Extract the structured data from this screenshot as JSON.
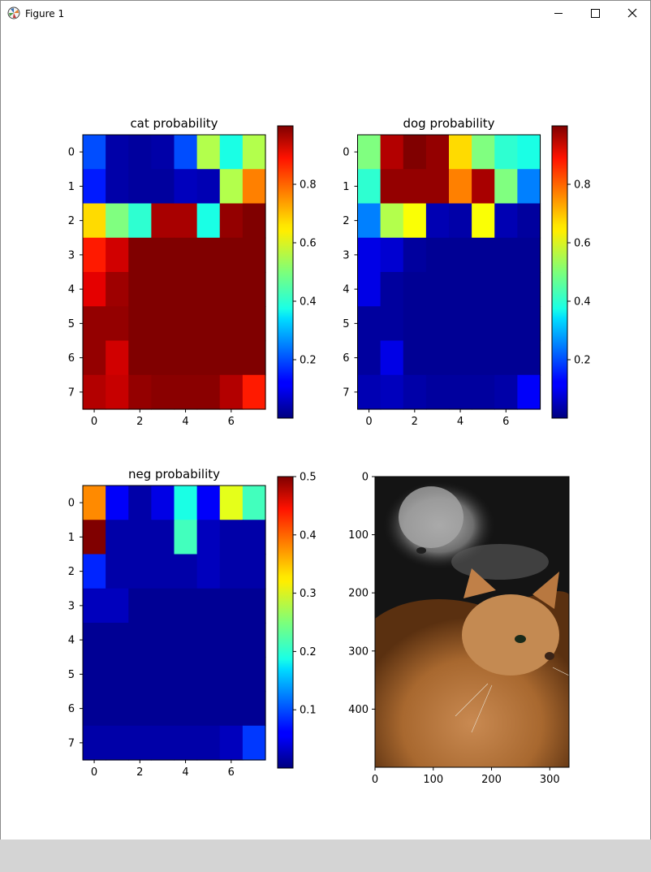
{
  "window": {
    "title": "Figure 1",
    "icons": {
      "app": "matplotlib-icon",
      "minimize": "minimize-icon",
      "maximize": "maximize-icon",
      "close": "close-icon"
    }
  },
  "colormap": "jet",
  "chart_data": [
    {
      "type": "heatmap",
      "title": "cat probability",
      "x": [
        0,
        1,
        2,
        3,
        4,
        5,
        6,
        7
      ],
      "y": [
        0,
        1,
        2,
        3,
        4,
        5,
        6,
        7
      ],
      "xticks": [
        0,
        2,
        4,
        6
      ],
      "yticks": [
        0,
        1,
        2,
        3,
        4,
        5,
        6,
        7
      ],
      "z": [
        [
          0.2,
          0.04,
          0.03,
          0.04,
          0.2,
          0.55,
          0.4,
          0.55
        ],
        [
          0.15,
          0.04,
          0.03,
          0.03,
          0.06,
          0.05,
          0.55,
          0.75
        ],
        [
          0.66,
          0.5,
          0.42,
          0.96,
          0.96,
          0.4,
          0.98,
          1.0
        ],
        [
          0.85,
          0.92,
          1.0,
          1.0,
          1.0,
          1.0,
          1.0,
          1.0
        ],
        [
          0.9,
          0.97,
          1.0,
          1.0,
          1.0,
          1.0,
          1.0,
          1.0
        ],
        [
          0.98,
          0.98,
          1.0,
          1.0,
          1.0,
          1.0,
          1.0,
          1.0
        ],
        [
          0.98,
          0.92,
          1.0,
          1.0,
          1.0,
          1.0,
          1.0,
          1.0
        ],
        [
          0.95,
          0.93,
          0.98,
          0.99,
          0.99,
          0.99,
          0.95,
          0.85
        ]
      ],
      "colorbar": {
        "ticks": [
          0.2,
          0.4,
          0.6,
          0.8
        ],
        "range": [
          0.0,
          1.0
        ]
      }
    },
    {
      "type": "heatmap",
      "title": "dog probability",
      "x": [
        0,
        1,
        2,
        3,
        4,
        5,
        6,
        7
      ],
      "y": [
        0,
        1,
        2,
        3,
        4,
        5,
        6,
        7
      ],
      "xticks": [
        0,
        2,
        4,
        6
      ],
      "yticks": [
        0,
        1,
        2,
        3,
        4,
        5,
        6,
        7
      ],
      "z": [
        [
          0.5,
          0.95,
          1.0,
          0.98,
          0.66,
          0.5,
          0.42,
          0.4
        ],
        [
          0.42,
          0.98,
          0.98,
          0.98,
          0.75,
          0.96,
          0.5,
          0.25
        ],
        [
          0.25,
          0.55,
          0.62,
          0.05,
          0.04,
          0.62,
          0.05,
          0.03
        ],
        [
          0.1,
          0.08,
          0.03,
          0.02,
          0.02,
          0.02,
          0.02,
          0.02
        ],
        [
          0.1,
          0.03,
          0.02,
          0.02,
          0.02,
          0.02,
          0.02,
          0.02
        ],
        [
          0.03,
          0.03,
          0.02,
          0.02,
          0.02,
          0.02,
          0.02,
          0.02
        ],
        [
          0.03,
          0.1,
          0.02,
          0.02,
          0.02,
          0.02,
          0.02,
          0.02
        ],
        [
          0.05,
          0.06,
          0.04,
          0.03,
          0.03,
          0.03,
          0.04,
          0.12
        ]
      ],
      "colorbar": {
        "ticks": [
          0.2,
          0.4,
          0.6,
          0.8
        ],
        "range": [
          0.0,
          1.0
        ]
      }
    },
    {
      "type": "heatmap",
      "title": "neg probability",
      "x": [
        0,
        1,
        2,
        3,
        4,
        5,
        6,
        7
      ],
      "y": [
        0,
        1,
        2,
        3,
        4,
        5,
        6,
        7
      ],
      "xticks": [
        0,
        2,
        4,
        6
      ],
      "yticks": [
        0,
        1,
        2,
        3,
        4,
        5,
        6,
        7
      ],
      "z": [
        [
          0.37,
          0.06,
          0.02,
          0.05,
          0.2,
          0.06,
          0.3,
          0.22
        ],
        [
          0.5,
          0.02,
          0.02,
          0.02,
          0.22,
          0.03,
          0.02,
          0.02
        ],
        [
          0.08,
          0.02,
          0.02,
          0.02,
          0.02,
          0.03,
          0.02,
          0.02
        ],
        [
          0.03,
          0.03,
          0.01,
          0.01,
          0.01,
          0.01,
          0.01,
          0.01
        ],
        [
          0.01,
          0.01,
          0.01,
          0.01,
          0.01,
          0.01,
          0.01,
          0.01
        ],
        [
          0.01,
          0.01,
          0.01,
          0.01,
          0.01,
          0.01,
          0.01,
          0.01
        ],
        [
          0.01,
          0.01,
          0.01,
          0.01,
          0.01,
          0.01,
          0.01,
          0.01
        ],
        [
          0.02,
          0.02,
          0.02,
          0.02,
          0.02,
          0.02,
          0.03,
          0.09
        ]
      ],
      "colorbar": {
        "ticks": [
          0.1,
          0.2,
          0.3,
          0.4,
          0.5
        ],
        "range": [
          0.0,
          0.5
        ]
      }
    },
    {
      "type": "image",
      "xticks": [
        0,
        100,
        200,
        300
      ],
      "yticks": [
        0,
        100,
        200,
        300,
        400
      ],
      "xlim": [
        0,
        333
      ],
      "ylim": [
        500,
        0
      ]
    }
  ]
}
